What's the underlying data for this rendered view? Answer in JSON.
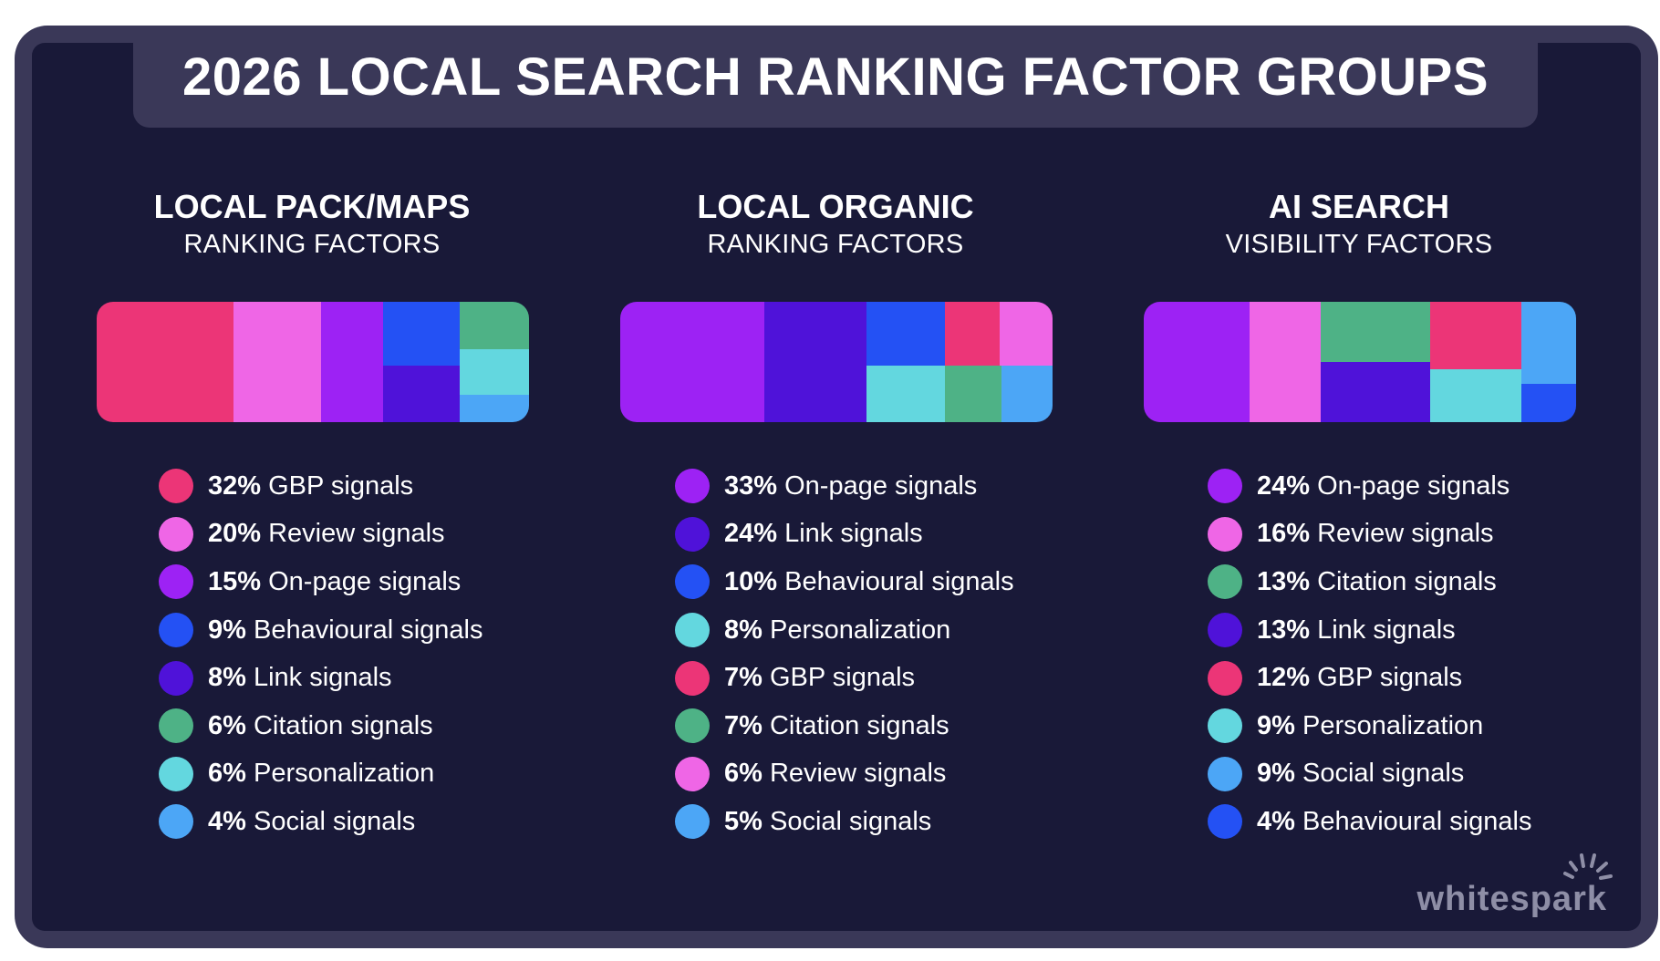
{
  "title": "2026 LOCAL SEARCH RANKING FACTOR GROUPS",
  "brand": "whitespark",
  "colors": {
    "background": "#191938",
    "frame": "#3a3858",
    "GBP signals": "#ec3577",
    "Review signals": "#ef66e6",
    "On-page signals": "#9d22f4",
    "Behavioural signals": "#2451f4",
    "Link signals": "#4f12d9",
    "Citation signals": "#4eb286",
    "Personalization": "#63d7df",
    "Social signals": "#4ca6f6"
  },
  "chart_data": [
    {
      "type": "treemap",
      "title": "LOCAL PACK/MAPS",
      "subtitle": "RANKING FACTORS",
      "categories": [
        "GBP signals",
        "Review signals",
        "On-page signals",
        "Behavioural signals",
        "Link signals",
        "Citation signals",
        "Personalization",
        "Social signals"
      ],
      "values": [
        32,
        20,
        15,
        9,
        8,
        6,
        6,
        4
      ],
      "legend": [
        {
          "pct": "32%",
          "label": "GBP signals"
        },
        {
          "pct": "20%",
          "label": "Review signals"
        },
        {
          "pct": "15%",
          "label": "On-page signals"
        },
        {
          "pct": "9%",
          "label": "Behavioural signals"
        },
        {
          "pct": "8%",
          "label": "Link signals"
        },
        {
          "pct": "6%",
          "label": "Citation signals"
        },
        {
          "pct": "6%",
          "label": "Personalization"
        },
        {
          "pct": "4%",
          "label": "Social signals"
        }
      ]
    },
    {
      "type": "treemap",
      "title": "LOCAL ORGANIC",
      "subtitle": "RANKING FACTORS",
      "categories": [
        "On-page signals",
        "Link signals",
        "Behavioural signals",
        "Personalization",
        "GBP signals",
        "Citation signals",
        "Review signals",
        "Social signals"
      ],
      "values": [
        33,
        24,
        10,
        8,
        7,
        7,
        6,
        5
      ],
      "legend": [
        {
          "pct": "33%",
          "label": "On-page signals"
        },
        {
          "pct": "24%",
          "label": "Link signals"
        },
        {
          "pct": "10%",
          "label": "Behavioural signals"
        },
        {
          "pct": "8%",
          "label": "Personalization"
        },
        {
          "pct": "7%",
          "label": "GBP signals"
        },
        {
          "pct": "7%",
          "label": "Citation signals"
        },
        {
          "pct": "6%",
          "label": "Review signals"
        },
        {
          "pct": "5%",
          "label": "Social signals"
        }
      ]
    },
    {
      "type": "treemap",
      "title": "AI SEARCH",
      "subtitle": "VISIBILITY FACTORS",
      "categories": [
        "On-page signals",
        "Review signals",
        "Citation signals",
        "Link signals",
        "GBP signals",
        "Personalization",
        "Social signals",
        "Behavioural signals"
      ],
      "values": [
        24,
        16,
        13,
        13,
        12,
        9,
        9,
        4
      ],
      "legend": [
        {
          "pct": "24%",
          "label": "On-page signals"
        },
        {
          "pct": "16%",
          "label": "Review signals"
        },
        {
          "pct": "13%",
          "label": "Citation signals"
        },
        {
          "pct": "13%",
          "label": "Link signals"
        },
        {
          "pct": "12%",
          "label": "GBP signals"
        },
        {
          "pct": "9%",
          "label": "Personalization"
        },
        {
          "pct": "9%",
          "label": "Social signals"
        },
        {
          "pct": "4%",
          "label": "Behavioural signals"
        }
      ]
    }
  ]
}
